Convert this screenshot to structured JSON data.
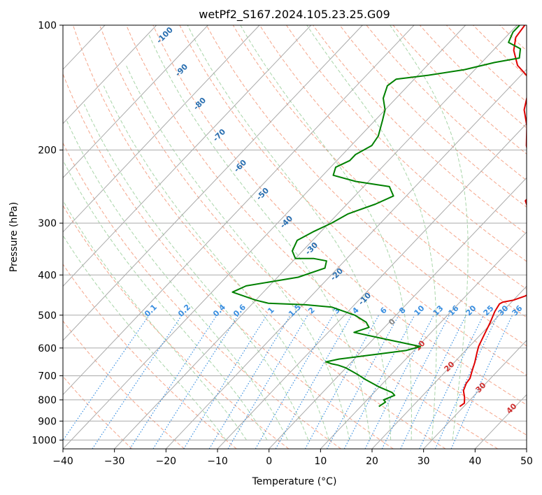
{
  "chart_data": {
    "type": "line",
    "subtype": "skew-t log-p diagram",
    "title": "wetPf2_S167.2024.105.23.25.G09",
    "xlabel": "Temperature (°C)",
    "ylabel": "Pressure (hPa)",
    "xlim": [
      -40,
      50
    ],
    "ylim": [
      1050,
      100
    ],
    "y_scale": "log",
    "x_ticks": [
      -40,
      -30,
      -20,
      -10,
      0,
      10,
      20,
      30,
      40,
      50
    ],
    "y_ticks": [
      100,
      200,
      300,
      400,
      500,
      600,
      700,
      800,
      900,
      1000
    ],
    "grid": true,
    "colors": {
      "temperature": "#e00000",
      "dewpoint": "#008000",
      "isotherm": "#aaaaaa",
      "isobar": "#aaaaaa",
      "dry_adiabat": "#f5a58a",
      "moist_adiabat": "#a8d5a8",
      "mixing_ratio": "#3a8fe0",
      "isotherm_label": "#2a6fb0",
      "positive_isotherm_label": "#d03030"
    },
    "series": [
      {
        "kind": "temperature",
        "points": [
          [
            29.2,
            830
          ],
          [
            29.5,
            815
          ],
          [
            28.5,
            790
          ],
          [
            27.0,
            760
          ],
          [
            26.2,
            730
          ],
          [
            26.0,
            710
          ],
          [
            25.0,
            680
          ],
          [
            24.0,
            650
          ],
          [
            22.6,
            615
          ],
          [
            21.8,
            595
          ],
          [
            20.8,
            560
          ],
          [
            19.6,
            520
          ],
          [
            18.5,
            490
          ],
          [
            18.0,
            470
          ],
          [
            18.3,
            465
          ],
          [
            20.0,
            460
          ],
          [
            21.5,
            450
          ],
          [
            23.0,
            430
          ],
          [
            21.8,
            410
          ],
          [
            19.0,
            390
          ],
          [
            16.5,
            375
          ],
          [
            17.5,
            360
          ],
          [
            16.0,
            345
          ],
          [
            12.5,
            320
          ],
          [
            9.5,
            300
          ],
          [
            6.5,
            280
          ],
          [
            4.0,
            265
          ],
          [
            4.0,
            245
          ],
          [
            1.5,
            230
          ],
          [
            -3.0,
            210
          ],
          [
            -6.0,
            195
          ],
          [
            -9.5,
            175
          ],
          [
            -13.0,
            160
          ],
          [
            -15.5,
            145
          ],
          [
            -17.5,
            135
          ],
          [
            -22.5,
            125
          ],
          [
            -26.0,
            115
          ],
          [
            -28.0,
            107
          ],
          [
            -28.5,
            100
          ]
        ]
      },
      {
        "kind": "dewpoint",
        "points": [
          [
            13.5,
            830
          ],
          [
            14.0,
            810
          ],
          [
            13.2,
            800
          ],
          [
            14.5,
            780
          ],
          [
            13.5,
            768
          ],
          [
            10.0,
            745
          ],
          [
            6.0,
            715
          ],
          [
            3.5,
            695
          ],
          [
            0.0,
            670
          ],
          [
            -2.0,
            660
          ],
          [
            -3.5,
            655
          ],
          [
            -5.0,
            648
          ],
          [
            -3.0,
            638
          ],
          [
            2.0,
            625
          ],
          [
            8.5,
            608
          ],
          [
            10.5,
            595
          ],
          [
            2.0,
            570
          ],
          [
            -5.0,
            550
          ],
          [
            -3.0,
            535
          ],
          [
            -4.5,
            520
          ],
          [
            -8.0,
            500
          ],
          [
            -14.0,
            478
          ],
          [
            -19.5,
            472
          ],
          [
            -27.0,
            468
          ],
          [
            -30.0,
            460
          ],
          [
            -36.0,
            440
          ],
          [
            -34.5,
            425
          ],
          [
            -26.0,
            405
          ],
          [
            -22.5,
            385
          ],
          [
            -23.5,
            370
          ],
          [
            -26.5,
            365
          ],
          [
            -30.0,
            365
          ],
          [
            -32.0,
            350
          ],
          [
            -33.0,
            330
          ],
          [
            -31.5,
            315
          ],
          [
            -29.5,
            300
          ],
          [
            -28.0,
            285
          ],
          [
            -24.5,
            270
          ],
          [
            -22.5,
            258
          ],
          [
            -25.0,
            245
          ],
          [
            -32.5,
            238
          ],
          [
            -38.0,
            230
          ],
          [
            -39.0,
            220
          ],
          [
            -37.5,
            212
          ],
          [
            -37.5,
            205
          ],
          [
            -36.0,
            195
          ],
          [
            -36.5,
            185
          ],
          [
            -38.5,
            170
          ],
          [
            -40.0,
            160
          ],
          [
            -42.5,
            150
          ],
          [
            -44.0,
            140
          ],
          [
            -43.5,
            135
          ],
          [
            -38.0,
            132
          ],
          [
            -32.0,
            128
          ],
          [
            -27.5,
            123
          ],
          [
            -23.5,
            120
          ],
          [
            -25.0,
            114
          ],
          [
            -28.5,
            110
          ],
          [
            -29.5,
            104
          ],
          [
            -29.5,
            100
          ]
        ]
      }
    ],
    "isotherm_labels": [
      "-100",
      "-90",
      "-80",
      "-70",
      "-60",
      "-50",
      "-40",
      "-30",
      "-20",
      "-10",
      "0",
      "10",
      "20",
      "30",
      "40"
    ],
    "mixing_ratio_labels": [
      "0.1",
      "0.2",
      "0.4",
      "0.6",
      "1",
      "1.5",
      "2",
      "3",
      "4",
      "6",
      "8",
      "10",
      "13",
      "16",
      "20",
      "25",
      "30",
      "36"
    ]
  }
}
